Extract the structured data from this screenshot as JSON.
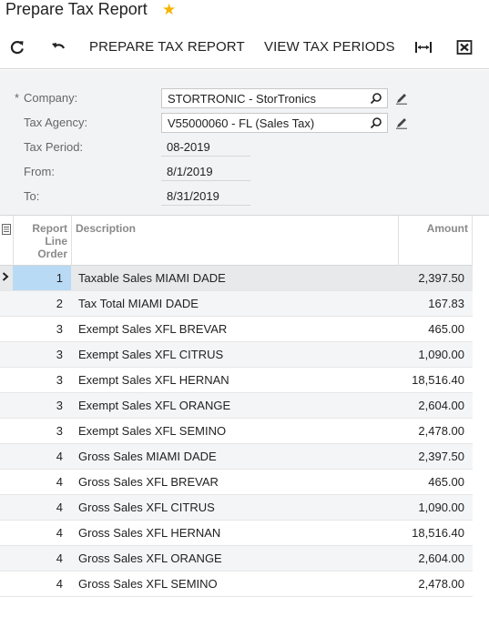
{
  "title": "Prepare Tax Report",
  "toolbar": {
    "prepare_label": "PREPARE TAX REPORT",
    "view_label": "VIEW TAX PERIODS"
  },
  "form": {
    "company_label": "Company:",
    "company_value": "STORTRONIC - StorTronics",
    "agency_label": "Tax Agency:",
    "agency_value": "V55000060 - FL (Sales Tax)",
    "period_label": "Tax Period:",
    "period_value": "08-2019",
    "from_label": "From:",
    "from_value": "8/1/2019",
    "to_label": "To:",
    "to_value": "8/31/2019"
  },
  "grid": {
    "col_order_line1": "Report",
    "col_order_line2": "Line",
    "col_order_line3": "Order",
    "col_description": "Description",
    "col_amount": "Amount",
    "rows": [
      {
        "order": "1",
        "description": "Taxable Sales MIAMI DADE",
        "amount": "2,397.50"
      },
      {
        "order": "2",
        "description": "Tax Total MIAMI DADE",
        "amount": "167.83"
      },
      {
        "order": "3",
        "description": "Exempt Sales XFL BREVAR",
        "amount": "465.00"
      },
      {
        "order": "3",
        "description": "Exempt Sales XFL CITRUS",
        "amount": "1,090.00"
      },
      {
        "order": "3",
        "description": "Exempt Sales XFL HERNAN",
        "amount": "18,516.40"
      },
      {
        "order": "3",
        "description": "Exempt Sales XFL ORANGE",
        "amount": "2,604.00"
      },
      {
        "order": "3",
        "description": "Exempt Sales XFL SEMINO",
        "amount": "2,478.00"
      },
      {
        "order": "4",
        "description": "Gross Sales MIAMI DADE",
        "amount": "2,397.50"
      },
      {
        "order": "4",
        "description": "Gross Sales XFL BREVAR",
        "amount": "465.00"
      },
      {
        "order": "4",
        "description": "Gross Sales XFL CITRUS",
        "amount": "1,090.00"
      },
      {
        "order": "4",
        "description": "Gross Sales XFL HERNAN",
        "amount": "18,516.40"
      },
      {
        "order": "4",
        "description": "Gross Sales XFL ORANGE",
        "amount": "2,604.00"
      },
      {
        "order": "4",
        "description": "Gross Sales XFL SEMINO",
        "amount": "2,478.00"
      }
    ]
  },
  "colors": {
    "star": "#f5b400",
    "selected_cell": "#b9daf5",
    "form_bg": "#f2f3f5"
  },
  "icons": {
    "refresh": "refresh-icon",
    "undo": "undo-icon",
    "fit_columns": "fit-columns-icon",
    "export_excel": "export-excel-icon",
    "search": "search-icon",
    "edit": "pencil-icon",
    "favorite": "star-icon",
    "row_selector": "row-arrow-icon",
    "grid_settings": "grid-settings-icon"
  }
}
